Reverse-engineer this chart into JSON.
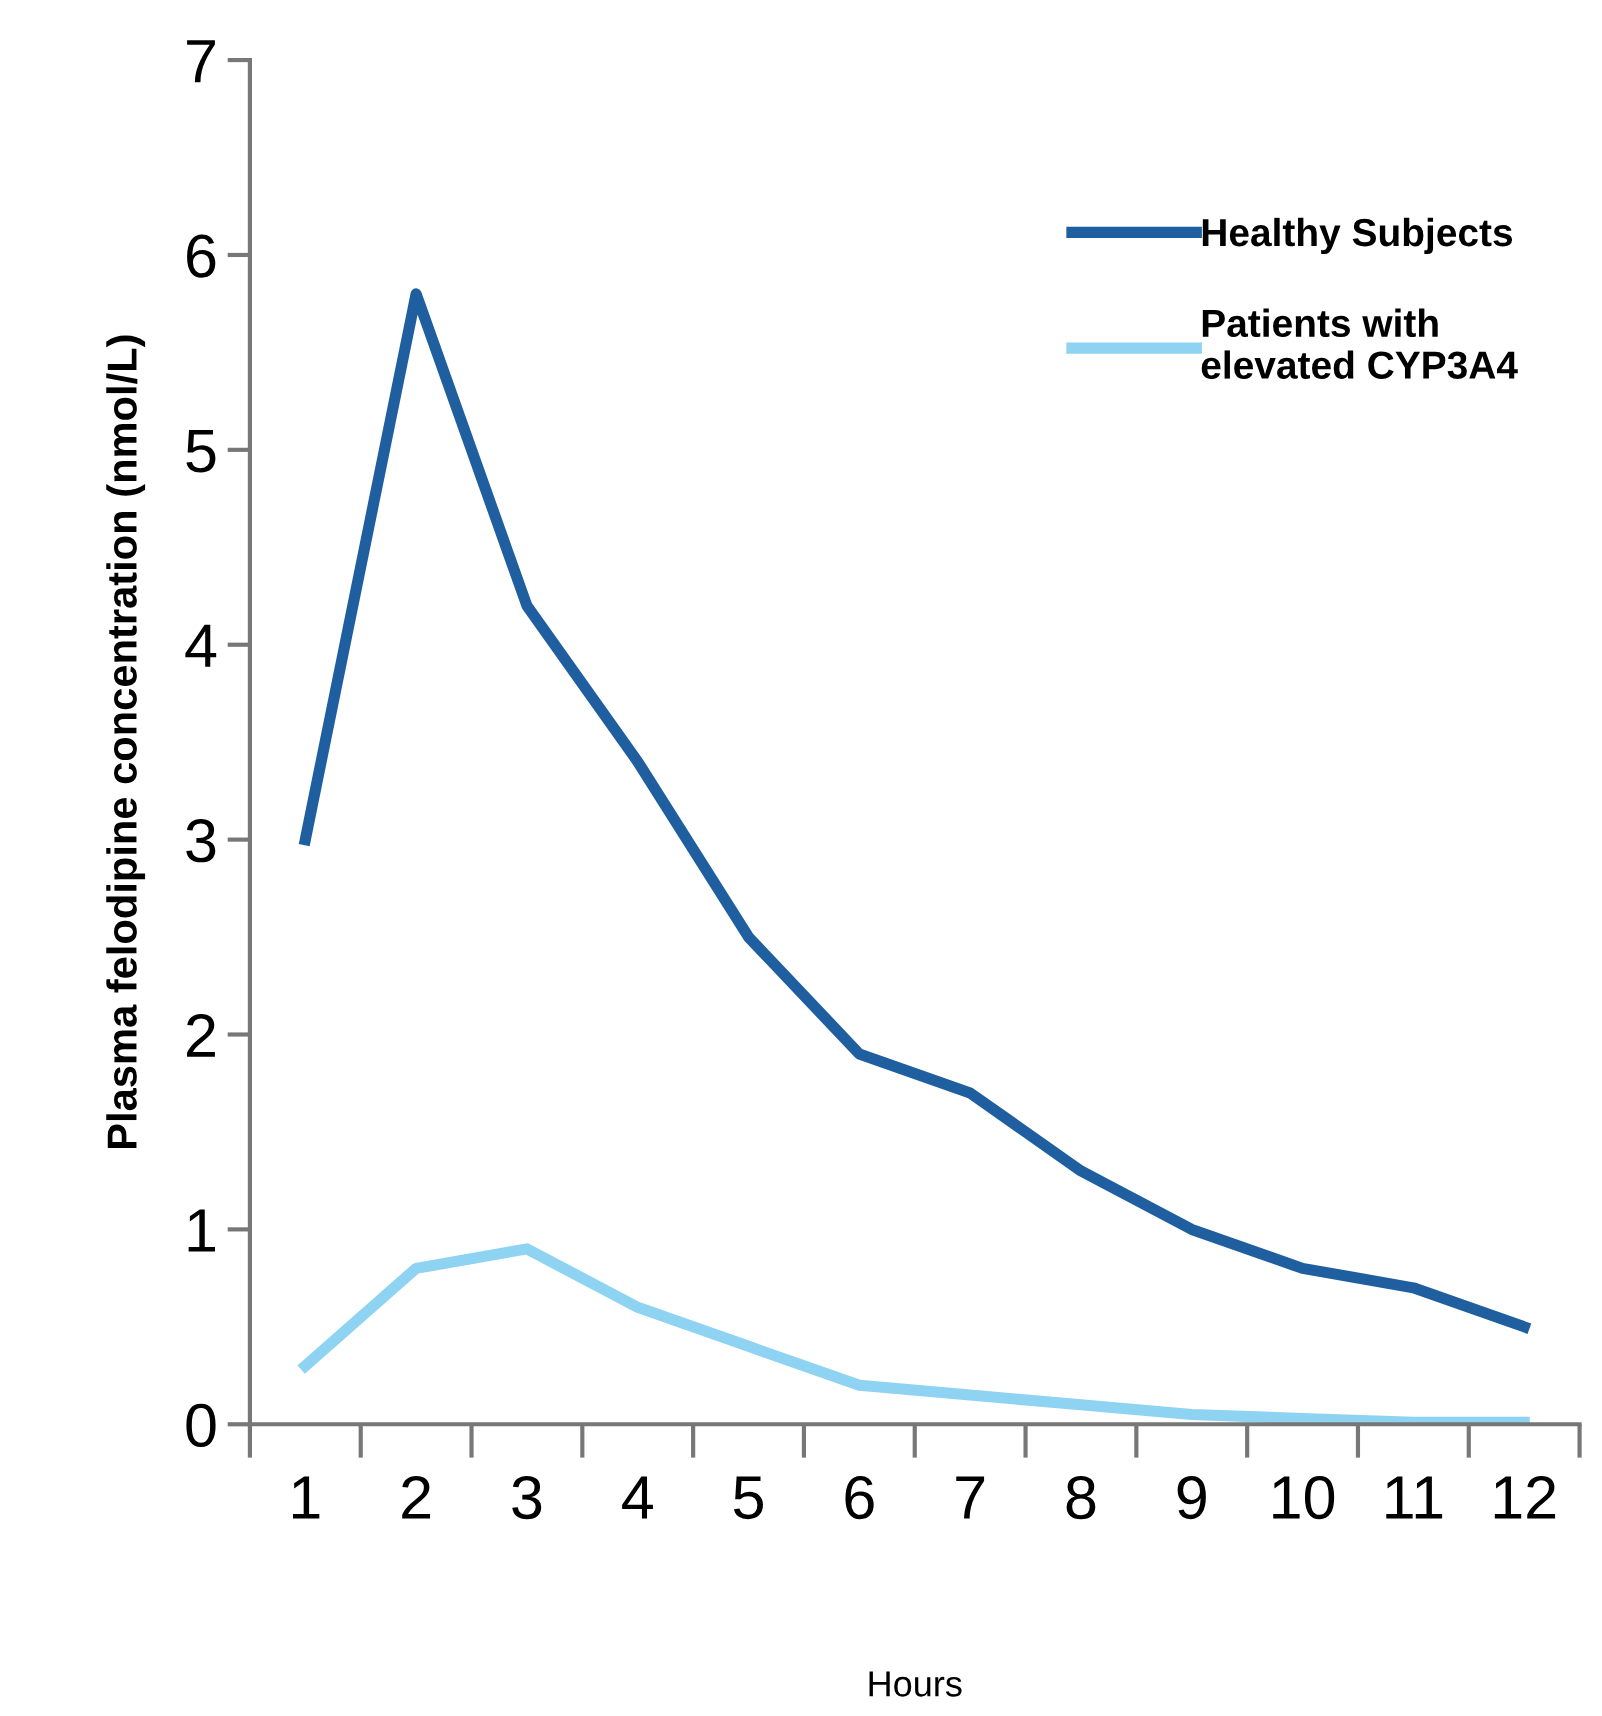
{
  "chart_data": {
    "type": "line",
    "xlabel": "Hours",
    "ylabel": "Plasma felodipine concentration (nmol/L)",
    "categories": [
      "1",
      "2",
      "3",
      "4",
      "5",
      "6",
      "7",
      "8",
      "9",
      "10",
      "11",
      "12"
    ],
    "series": [
      {
        "name": "Healthy Subjects",
        "color": "#1f5f9f",
        "values": [
          3.0,
          5.8,
          4.2,
          3.4,
          2.5,
          1.9,
          1.7,
          1.3,
          1.0,
          0.8,
          0.7,
          0.5
        ]
      },
      {
        "name": "Patients with\nelevated CYP3A4",
        "color": "#8ed3f2",
        "values": [
          0.3,
          0.8,
          0.9,
          0.6,
          0.4,
          0.2,
          0.15,
          0.1,
          0.05,
          0.03,
          0.01,
          0.01
        ]
      }
    ],
    "ylim": [
      0,
      7
    ],
    "yticks": [
      0,
      1,
      2,
      3,
      4,
      5,
      6,
      7
    ],
    "grid": false,
    "legend": "top right",
    "marker": "none",
    "line_style": "solid"
  }
}
